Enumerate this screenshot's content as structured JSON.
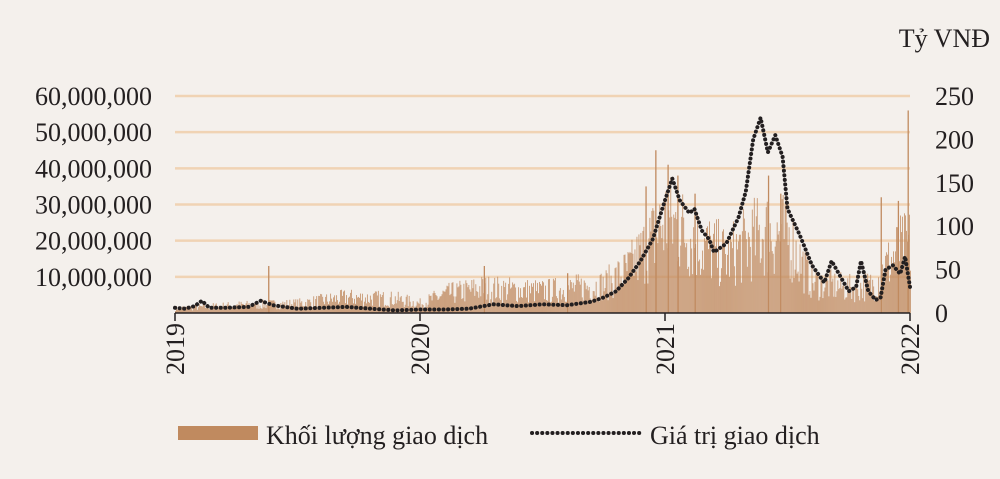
{
  "chart_data": {
    "type": "bar+line",
    "title": "",
    "right_axis_unit": "Tỷ VNĐ",
    "x_ticks": [
      "2019",
      "2020",
      "2021",
      "2022"
    ],
    "y_left": {
      "ticks": [
        "10,000,000",
        "20,000,000",
        "30,000,000",
        "40,000,000",
        "50,000,000",
        "60,000,000"
      ],
      "ylim": [
        0,
        60000000
      ]
    },
    "y_right": {
      "ticks": [
        "0",
        "50",
        "100",
        "150",
        "200",
        "250"
      ],
      "ylim": [
        0,
        250
      ]
    },
    "grid": true,
    "legend_position": "bottom",
    "colors": {
      "bars": "#c08a5f",
      "line": "#231f20",
      "grid": "#f0d3b4",
      "axis": "#231f20"
    },
    "series": [
      {
        "name": "Khối lượng giao dịch",
        "kind": "bar",
        "axis": "left",
        "anchors": [
          [
            2019.0,
            1500000
          ],
          [
            2019.25,
            2500000
          ],
          [
            2019.5,
            3000000
          ],
          [
            2019.7,
            5000000
          ],
          [
            2019.9,
            4500000
          ],
          [
            2020.0,
            3000000
          ],
          [
            2020.1,
            6000000
          ],
          [
            2020.25,
            8000000
          ],
          [
            2020.5,
            7000000
          ],
          [
            2020.75,
            9000000
          ],
          [
            2020.85,
            14000000
          ],
          [
            2020.95,
            24000000
          ],
          [
            2021.0,
            30000000
          ],
          [
            2021.05,
            28000000
          ],
          [
            2021.15,
            22000000
          ],
          [
            2021.25,
            18000000
          ],
          [
            2021.4,
            26000000
          ],
          [
            2021.5,
            25000000
          ],
          [
            2021.55,
            17000000
          ],
          [
            2021.6,
            10000000
          ],
          [
            2021.75,
            8000000
          ],
          [
            2021.85,
            9000000
          ],
          [
            2021.9,
            15000000
          ],
          [
            2021.95,
            20000000
          ],
          [
            2022.0,
            22000000
          ]
        ],
        "peaks": [
          [
            2019.38,
            13000000
          ],
          [
            2020.26,
            13000000
          ],
          [
            2020.6,
            11000000
          ],
          [
            2020.92,
            35000000
          ],
          [
            2020.96,
            45000000
          ],
          [
            2021.01,
            41000000
          ],
          [
            2021.05,
            38000000
          ],
          [
            2021.12,
            33000000
          ],
          [
            2021.42,
            38000000
          ],
          [
            2021.47,
            33000000
          ],
          [
            2021.88,
            32000000
          ],
          [
            2021.95,
            31000000
          ],
          [
            2021.99,
            56000000
          ]
        ]
      },
      {
        "name": "Giá trị giao dịch",
        "kind": "line",
        "axis": "right",
        "points": [
          [
            2019.0,
            6
          ],
          [
            2019.04,
            5
          ],
          [
            2019.08,
            8
          ],
          [
            2019.11,
            14
          ],
          [
            2019.14,
            6
          ],
          [
            2019.2,
            6
          ],
          [
            2019.3,
            7
          ],
          [
            2019.35,
            14
          ],
          [
            2019.4,
            9
          ],
          [
            2019.5,
            5
          ],
          [
            2019.6,
            6
          ],
          [
            2019.7,
            7
          ],
          [
            2019.8,
            5
          ],
          [
            2019.9,
            3
          ],
          [
            2020.0,
            4
          ],
          [
            2020.1,
            4
          ],
          [
            2020.2,
            5
          ],
          [
            2020.3,
            10
          ],
          [
            2020.4,
            8
          ],
          [
            2020.5,
            10
          ],
          [
            2020.6,
            9
          ],
          [
            2020.7,
            13
          ],
          [
            2020.75,
            18
          ],
          [
            2020.8,
            25
          ],
          [
            2020.85,
            40
          ],
          [
            2020.9,
            60
          ],
          [
            2020.95,
            85
          ],
          [
            2021.0,
            130
          ],
          [
            2021.03,
            155
          ],
          [
            2021.06,
            130
          ],
          [
            2021.1,
            115
          ],
          [
            2021.12,
            120
          ],
          [
            2021.15,
            95
          ],
          [
            2021.18,
            85
          ],
          [
            2021.2,
            70
          ],
          [
            2021.25,
            80
          ],
          [
            2021.3,
            110
          ],
          [
            2021.33,
            140
          ],
          [
            2021.36,
            200
          ],
          [
            2021.39,
            225
          ],
          [
            2021.42,
            185
          ],
          [
            2021.45,
            205
          ],
          [
            2021.48,
            180
          ],
          [
            2021.5,
            120
          ],
          [
            2021.55,
            90
          ],
          [
            2021.6,
            55
          ],
          [
            2021.65,
            35
          ],
          [
            2021.68,
            60
          ],
          [
            2021.72,
            40
          ],
          [
            2021.75,
            25
          ],
          [
            2021.78,
            30
          ],
          [
            2021.8,
            60
          ],
          [
            2021.83,
            25
          ],
          [
            2021.86,
            15
          ],
          [
            2021.88,
            18
          ],
          [
            2021.9,
            50
          ],
          [
            2021.93,
            55
          ],
          [
            2021.96,
            45
          ],
          [
            2021.98,
            65
          ],
          [
            2022.0,
            30
          ]
        ]
      }
    ]
  }
}
